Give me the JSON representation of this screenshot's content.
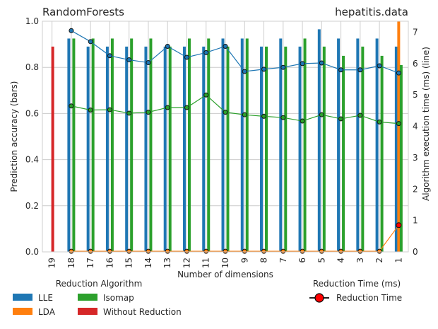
{
  "chart_data": {
    "type": "bar+line",
    "title_left": "RandomForests",
    "title_right": "hepatitis.data",
    "xlabel": "Number of dimensions",
    "ylabel_left": "Prediction accuracy (bars)",
    "ylabel_right": "Algorithm execution time (ms) (line)",
    "ylim_left": [
      0,
      1.0
    ],
    "ylim_right": [
      0,
      7.35
    ],
    "yticks_left": [
      "0.0",
      "0.2",
      "0.4",
      "0.6",
      "0.8",
      "1.0"
    ],
    "yticks_right": [
      "0",
      "1",
      "2",
      "3",
      "4",
      "5",
      "6",
      "7"
    ],
    "categories": [
      "19",
      "18",
      "17",
      "16",
      "15",
      "14",
      "13",
      "12",
      "11",
      "10",
      "9",
      "8",
      "7",
      "6",
      "5",
      "4",
      "3",
      "2",
      "1"
    ],
    "bar_series": [
      {
        "name": "LLE",
        "color": "#1f77b4",
        "values": [
          null,
          0.925,
          0.89,
          0.89,
          0.89,
          0.89,
          0.89,
          0.89,
          0.89,
          0.925,
          0.925,
          0.89,
          0.925,
          0.89,
          0.965,
          0.925,
          0.925,
          0.925,
          0.89
        ]
      },
      {
        "name": "LDA",
        "color": "#ff7f0e",
        "values": [
          null,
          null,
          null,
          null,
          null,
          null,
          null,
          null,
          null,
          null,
          null,
          null,
          null,
          null,
          null,
          null,
          null,
          null,
          1.0
        ]
      },
      {
        "name": "Isomap",
        "color": "#2ca02c",
        "values": [
          null,
          0.925,
          0.925,
          0.925,
          0.925,
          0.925,
          0.89,
          0.925,
          0.925,
          0.89,
          0.925,
          0.89,
          0.89,
          0.925,
          0.89,
          0.85,
          0.89,
          0.85,
          0.81
        ]
      },
      {
        "name": "Without Reduction",
        "color": "#d62728",
        "values": [
          0.89,
          null,
          null,
          null,
          null,
          null,
          null,
          null,
          null,
          null,
          null,
          null,
          null,
          null,
          null,
          null,
          null,
          null,
          null
        ]
      }
    ],
    "line_series": [
      {
        "name": "LLE",
        "color": "#1f77b4",
        "values": [
          null,
          7.05,
          6.7,
          6.25,
          6.12,
          6.03,
          6.55,
          6.2,
          6.35,
          6.55,
          5.75,
          5.82,
          5.88,
          6.0,
          6.02,
          5.8,
          5.8,
          5.93,
          5.7
        ]
      },
      {
        "name": "LDA",
        "color": "#ff7f0e",
        "values": [
          null,
          0.02,
          0.02,
          0.02,
          0.02,
          0.02,
          0.02,
          0.02,
          0.02,
          0.02,
          0.02,
          0.02,
          0.02,
          0.02,
          0.02,
          0.02,
          0.02,
          0.02,
          0.85
        ]
      },
      {
        "name": "Isomap",
        "color": "#2ca02c",
        "values": [
          null,
          4.65,
          4.52,
          4.53,
          4.42,
          4.45,
          4.6,
          4.6,
          5.0,
          4.45,
          4.37,
          4.32,
          4.28,
          4.17,
          4.37,
          4.24,
          4.35,
          4.14,
          4.09
        ]
      }
    ],
    "legend_bars_title": "Reduction Algorithm",
    "legend_line_title": "Reduction Time (ms)",
    "legend_line_label": "Reduction Time",
    "legend_bar_labels": [
      "LLE",
      "LDA",
      "Isomap",
      "Without Reduction"
    ],
    "legend_line_color": "#ff0000",
    "grid": true,
    "legend_placement": "bottom"
  }
}
